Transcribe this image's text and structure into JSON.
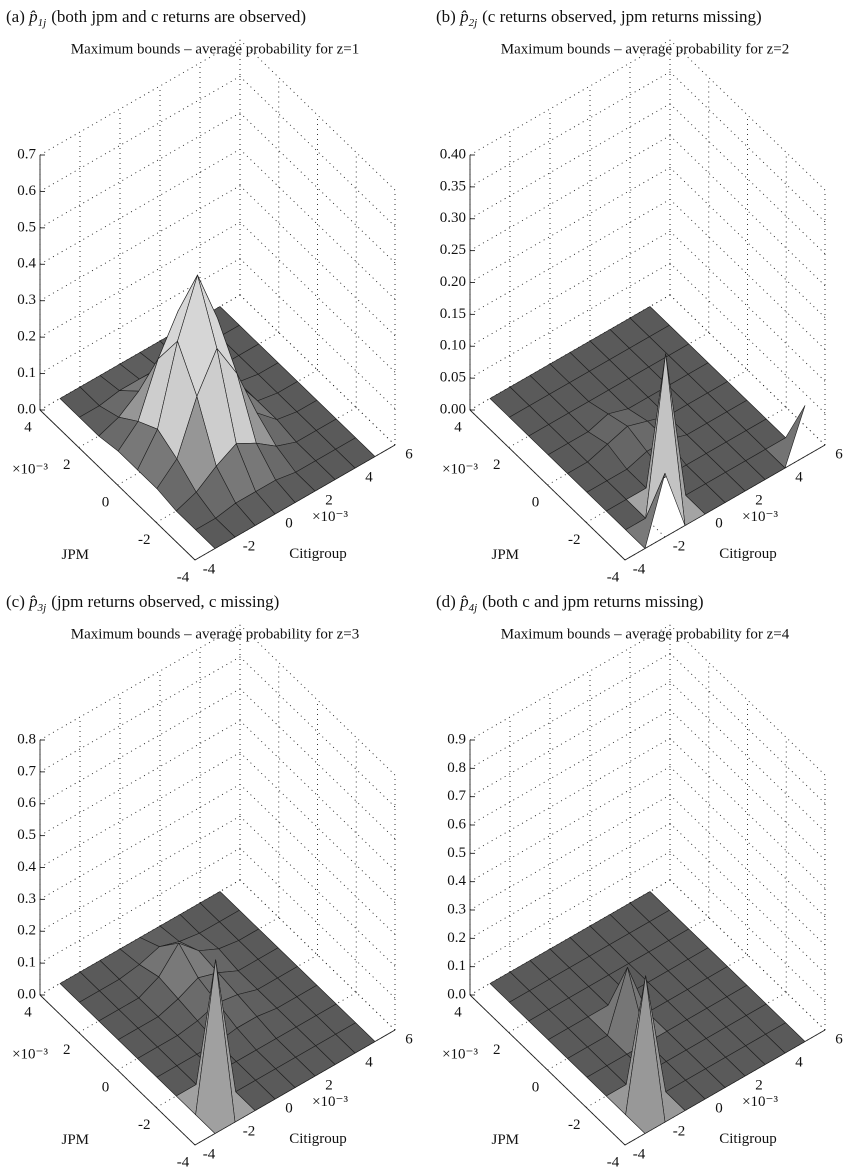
{
  "chart_data": [
    {
      "type": "surface",
      "label": "(a)",
      "symbol": "p̂",
      "subscript": "1j",
      "title": "(both jpm and c returns are observed)",
      "subtitle": "Maximum bounds – average probability for z=1",
      "xlabel": "Citigroup",
      "ylabel": "JPM",
      "x_unit_label": "×10⁻³",
      "y_unit_label": "×10⁻³",
      "xlim": [
        -4,
        6
      ],
      "ylim": [
        -4,
        4
      ],
      "zlim": [
        0,
        0.7
      ],
      "xticks": [
        -4,
        -2,
        0,
        2,
        4,
        6
      ],
      "yticks": [
        -4,
        -2,
        0,
        2,
        4
      ],
      "zticks": [
        {
          "value": 0,
          "label": "0.0"
        },
        0.1,
        0.2,
        0.3,
        0.4,
        0.5,
        0.6,
        0.7
      ],
      "grid": true,
      "colormap": [
        "#5a5a5a",
        "#d6d6d6"
      ],
      "x": [
        -3,
        -2,
        -1,
        0,
        1,
        2,
        3,
        4,
        5
      ],
      "y": [
        -4,
        -3,
        -2,
        -1,
        0,
        1,
        2,
        3,
        4
      ],
      "z": [
        [
          0,
          0,
          0,
          0,
          0,
          0,
          0,
          0,
          0
        ],
        [
          0,
          0,
          0.01,
          0.01,
          0.01,
          0,
          0,
          0,
          0
        ],
        [
          0,
          0.02,
          0.06,
          0.09,
          0.06,
          0.02,
          0,
          0,
          0
        ],
        [
          0.01,
          0.06,
          0.2,
          0.3,
          0.2,
          0.06,
          0.01,
          0,
          0
        ],
        [
          0.01,
          0.09,
          0.3,
          0.45,
          0.3,
          0.09,
          0.01,
          0,
          0
        ],
        [
          0.01,
          0.06,
          0.2,
          0.3,
          0.2,
          0.06,
          0.01,
          0,
          0
        ],
        [
          0,
          0.02,
          0.06,
          0.09,
          0.06,
          0.02,
          0,
          0,
          0
        ],
        [
          0,
          0,
          0.01,
          0.01,
          0.01,
          0,
          0,
          0,
          0
        ],
        [
          0,
          0,
          0,
          0,
          0,
          0,
          0,
          0,
          0
        ]
      ]
    },
    {
      "type": "surface",
      "label": "(b)",
      "symbol": "p̂",
      "subscript": "2j",
      "title": "(c returns observed, jpm returns missing)",
      "subtitle": "Maximum bounds – average probability for z=2",
      "xlabel": "Citigroup",
      "ylabel": "JPM",
      "x_unit_label": "×10⁻³",
      "y_unit_label": "×10⁻³",
      "xlim": [
        -4,
        6
      ],
      "ylim": [
        -4,
        4
      ],
      "zlim": [
        0,
        0.4
      ],
      "xticks": [
        -4,
        -2,
        0,
        2,
        4,
        6
      ],
      "yticks": [
        -4,
        -2,
        0,
        2,
        4
      ],
      "zticks": [
        {
          "value": 0,
          "label": "0.00"
        },
        {
          "value": 0.05,
          "label": "0.05"
        },
        {
          "value": 0.1,
          "label": "0.10"
        },
        {
          "value": 0.15,
          "label": "0.15"
        },
        {
          "value": 0.2,
          "label": "0.20"
        },
        {
          "value": 0.25,
          "label": "0.25"
        },
        {
          "value": 0.3,
          "label": "0.30"
        },
        {
          "value": 0.35,
          "label": "0.35"
        },
        {
          "value": 0.4,
          "label": "0.40"
        }
      ],
      "grid": true,
      "colormap": [
        "#5a5a5a",
        "#d6d6d6"
      ],
      "x": [
        -3,
        -2,
        -1,
        0,
        1,
        2,
        3,
        4,
        5
      ],
      "y": [
        -4,
        -3,
        -2,
        -1,
        0,
        1,
        2,
        3,
        4
      ],
      "z": [
        [
          0,
          0.1,
          0,
          0,
          0,
          0,
          0,
          0,
          0.08
        ],
        [
          0,
          0,
          0.24,
          0,
          0,
          0,
          0,
          0,
          0
        ],
        [
          0,
          0,
          0,
          0,
          0,
          0,
          0,
          0,
          0
        ],
        [
          0,
          0,
          0,
          0.01,
          0.01,
          0,
          0,
          0,
          0
        ],
        [
          0,
          0,
          0.01,
          0.02,
          0.01,
          0,
          0,
          0,
          0
        ],
        [
          0,
          0,
          0,
          0.01,
          0,
          0,
          0,
          0,
          0
        ],
        [
          0,
          0,
          0,
          0,
          0,
          0,
          0,
          0,
          0
        ],
        [
          0,
          0,
          0,
          0,
          0,
          0,
          0,
          0,
          0
        ],
        [
          0,
          0,
          0,
          0,
          0,
          0,
          0,
          0,
          0
        ]
      ]
    },
    {
      "type": "surface",
      "label": "(c)",
      "symbol": "p̂",
      "subscript": "3j",
      "title": "(jpm returns observed, c missing)",
      "subtitle": "Maximum bounds – average probability for z=3",
      "xlabel": "Citigroup",
      "ylabel": "JPM",
      "x_unit_label": "×10⁻³",
      "y_unit_label": "×10⁻³",
      "xlim": [
        -4,
        6
      ],
      "ylim": [
        -4,
        4
      ],
      "zlim": [
        0,
        0.8
      ],
      "xticks": [
        -4,
        -2,
        0,
        2,
        4,
        6
      ],
      "yticks": [
        -4,
        -2,
        0,
        2,
        4
      ],
      "zticks": [
        {
          "value": 0,
          "label": "0.0"
        },
        0.1,
        0.2,
        0.3,
        0.4,
        0.5,
        0.6,
        0.7,
        0.8
      ],
      "grid": true,
      "colormap": [
        "#5a5a5a",
        "#d6d6d6"
      ],
      "x": [
        -3,
        -2,
        -1,
        0,
        1,
        2,
        3,
        4,
        5
      ],
      "y": [
        -4,
        -3,
        -2,
        -1,
        0,
        1,
        2,
        3,
        4
      ],
      "z": [
        [
          0,
          0,
          0,
          0,
          0,
          0,
          0,
          0,
          0
        ],
        [
          0,
          0.45,
          0,
          0,
          0,
          0,
          0,
          0,
          0
        ],
        [
          0,
          0,
          0,
          0,
          0,
          0,
          0,
          0,
          0
        ],
        [
          0,
          0,
          0,
          0,
          0.01,
          0.01,
          0,
          0,
          0
        ],
        [
          0,
          0,
          0,
          0.01,
          0.03,
          0.02,
          0,
          0,
          0
        ],
        [
          0,
          0,
          0,
          0.02,
          0.05,
          0.03,
          0,
          0,
          0
        ],
        [
          0,
          0,
          0,
          0.03,
          0.1,
          0.04,
          0.01,
          0,
          0
        ],
        [
          0,
          0,
          0,
          0.01,
          0.03,
          0.01,
          0,
          0,
          0
        ],
        [
          0,
          0,
          0,
          0,
          0,
          0,
          0,
          0,
          0
        ]
      ]
    },
    {
      "type": "surface",
      "label": "(d)",
      "symbol": "p̂",
      "subscript": "4j",
      "title": "(both c and jpm returns missing)",
      "subtitle": "Maximum bounds – average probability for z=4",
      "xlabel": "Citigroup",
      "ylabel": "JPM",
      "x_unit_label": "×10⁻³",
      "y_unit_label": "×10⁻³",
      "xlim": [
        -4,
        6
      ],
      "ylim": [
        -4,
        4
      ],
      "zlim": [
        0,
        0.9
      ],
      "xticks": [
        -4,
        -2,
        0,
        2,
        4,
        6
      ],
      "yticks": [
        -4,
        -2,
        0,
        2,
        4
      ],
      "zticks": [
        {
          "value": 0,
          "label": "0.0"
        },
        0.1,
        0.2,
        0.3,
        0.4,
        0.5,
        0.6,
        0.7,
        0.8,
        0.9
      ],
      "grid": true,
      "colormap": [
        "#5a5a5a",
        "#d6d6d6"
      ],
      "x": [
        -3,
        -2,
        -1,
        0,
        1,
        2,
        3,
        4,
        5
      ],
      "y": [
        -4,
        -3,
        -2,
        -1,
        0,
        1,
        2,
        3,
        4
      ],
      "z": [
        [
          0,
          0,
          0,
          0,
          0,
          0,
          0,
          0,
          0
        ],
        [
          0,
          0.45,
          0,
          0,
          0,
          0,
          0,
          0,
          0
        ],
        [
          0,
          0,
          0,
          0,
          0,
          0,
          0,
          0,
          0
        ],
        [
          0,
          0,
          0,
          0,
          0,
          0,
          0,
          0,
          0
        ],
        [
          0,
          0,
          0,
          0.2,
          0,
          0,
          0,
          0,
          0
        ],
        [
          0,
          0,
          0,
          0,
          0,
          0,
          0,
          0,
          0
        ],
        [
          0,
          0,
          0,
          0,
          0,
          0,
          0,
          0,
          0
        ],
        [
          0,
          0,
          0,
          0,
          0,
          0,
          0,
          0,
          0
        ],
        [
          0,
          0,
          0,
          0,
          0,
          0,
          0,
          0,
          0
        ]
      ]
    }
  ]
}
